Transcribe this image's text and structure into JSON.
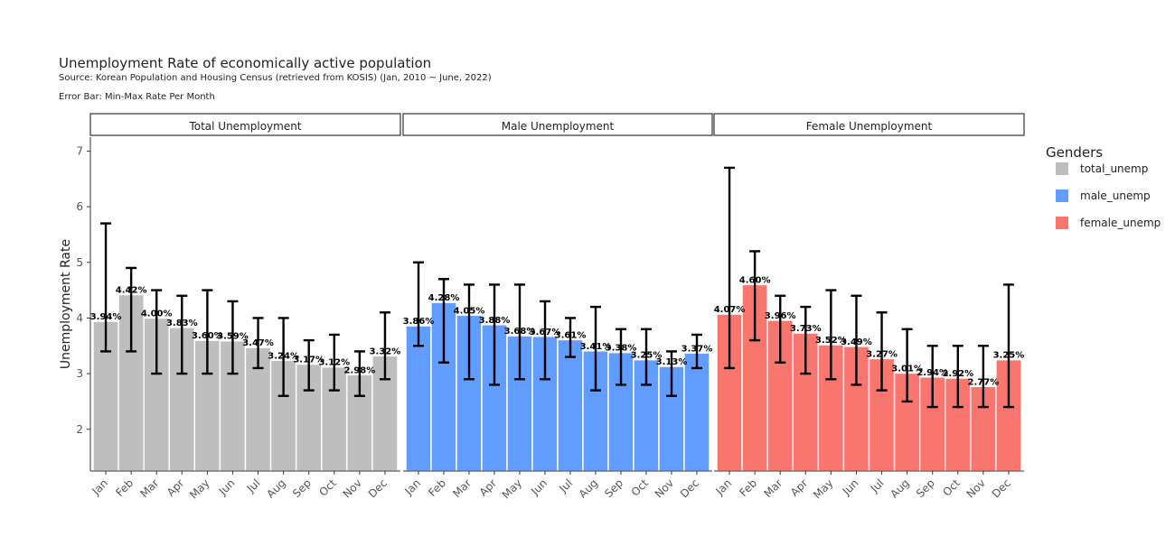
{
  "chart_data": {
    "type": "bar",
    "title": "Unemployment Rate of economically active population",
    "subtitle": "Source: Korean Population and Housing Census (retrieved from KOSIS) (Jan, 2010 ~ June, 2022)",
    "caption_line2": "Error Bar: Min-Max Rate Per Month",
    "ylabel": "Unemployment Rate",
    "xlabel": "",
    "ylim": [
      1.25,
      7.25
    ],
    "yticks": [
      2,
      3,
      4,
      5,
      6,
      7
    ],
    "categories": [
      "Jan",
      "Feb",
      "Mar",
      "Apr",
      "May",
      "Jun",
      "Jul",
      "Aug",
      "Sep",
      "Oct",
      "Nov",
      "Dec"
    ],
    "legend": {
      "title": "Genders",
      "placement": "right"
    },
    "panels": [
      {
        "label": "Total Unemployment",
        "series": "total_unemp",
        "color": "#BEBEBE",
        "values": [
          3.94,
          4.42,
          4.0,
          3.83,
          3.6,
          3.59,
          3.47,
          3.24,
          3.17,
          3.12,
          2.98,
          3.32
        ],
        "labels": [
          "3.94%",
          "4.42%",
          "4.00%",
          "3.83%",
          "3.60%",
          "3.59%",
          "3.47%",
          "3.24%",
          "3.17%",
          "3.12%",
          "2.98%",
          "3.32%"
        ],
        "min": [
          3.4,
          3.4,
          3.0,
          3.0,
          3.0,
          3.0,
          3.1,
          2.6,
          2.7,
          2.7,
          2.6,
          2.9
        ],
        "max": [
          5.7,
          4.9,
          4.5,
          4.4,
          4.5,
          4.3,
          4.0,
          4.0,
          3.6,
          3.7,
          3.4,
          4.1
        ]
      },
      {
        "label": "Male Unemployment",
        "series": "male_unemp",
        "color": "#619CFF",
        "values": [
          3.86,
          4.28,
          4.05,
          3.88,
          3.68,
          3.67,
          3.61,
          3.41,
          3.38,
          3.25,
          3.13,
          3.37
        ],
        "labels": [
          "3.86%",
          "4.28%",
          "4.05%",
          "3.88%",
          "3.68%",
          "3.67%",
          "3.61%",
          "3.41%",
          "3.38%",
          "3.25%",
          "3.13%",
          "3.37%"
        ],
        "min": [
          3.5,
          3.2,
          2.9,
          2.8,
          2.9,
          2.9,
          3.3,
          2.7,
          2.8,
          2.8,
          2.6,
          3.1
        ],
        "max": [
          5.0,
          4.7,
          4.6,
          4.6,
          4.6,
          4.3,
          4.0,
          4.2,
          3.8,
          3.8,
          3.4,
          3.7
        ]
      },
      {
        "label": "Female Unemployment",
        "series": "female_unemp",
        "color": "#F8766D",
        "values": [
          4.07,
          4.6,
          3.96,
          3.73,
          3.52,
          3.49,
          3.27,
          3.01,
          2.94,
          2.92,
          2.77,
          3.25
        ],
        "labels": [
          "4.07%",
          "4.60%",
          "3.96%",
          "3.73%",
          "3.52%",
          "3.49%",
          "3.27%",
          "3.01%",
          "2.94%",
          "2.92%",
          "2.77%",
          "3.25%"
        ],
        "min": [
          3.1,
          3.6,
          3.2,
          3.0,
          2.9,
          2.8,
          2.7,
          2.5,
          2.4,
          2.4,
          2.4,
          2.4
        ],
        "max": [
          6.7,
          5.2,
          4.4,
          4.2,
          4.5,
          4.4,
          4.1,
          3.8,
          3.5,
          3.5,
          3.5,
          4.6
        ]
      }
    ]
  }
}
